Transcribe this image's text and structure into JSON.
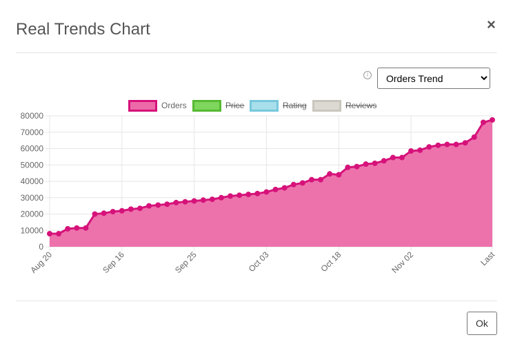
{
  "dialog": {
    "title": "Real Trends Chart",
    "close_symbol": "×",
    "ok_label": "Ok",
    "info_icon": "info-circle-icon"
  },
  "trend_select": {
    "selected": "Orders Trend",
    "options": [
      "Orders Trend"
    ]
  },
  "colors": {
    "orders": "#d6127a",
    "orders_fill": "#ec6aa8",
    "price": "#56b932",
    "price_fill": "#7fd65c",
    "rating": "#77c8db",
    "rating_fill": "#a8dfeb",
    "reviews": "#c9c6bd",
    "reviews_fill": "#dbd9d2"
  },
  "legend": [
    {
      "label": "Orders",
      "hidden": false
    },
    {
      "label": "Price",
      "hidden": true
    },
    {
      "label": "Rating",
      "hidden": true
    },
    {
      "label": "Reviews",
      "hidden": true
    }
  ],
  "chart_data": {
    "type": "area",
    "ylim": [
      0,
      80000
    ],
    "yticks": [
      0,
      10000,
      20000,
      30000,
      40000,
      50000,
      60000,
      70000,
      80000
    ],
    "xtick_labels": [
      {
        "label": "Aug 20",
        "index": 0
      },
      {
        "label": "Sep 16",
        "index": 8
      },
      {
        "label": "Sep 25",
        "index": 16
      },
      {
        "label": "Oct 03",
        "index": 24
      },
      {
        "label": "Oct 18",
        "index": 32
      },
      {
        "label": "Nov 02",
        "index": 40
      },
      {
        "label": "Last",
        "index": 49
      }
    ],
    "grid": true,
    "legend_position": "top",
    "series": [
      {
        "name": "Orders",
        "values": [
          8000,
          8000,
          11000,
          11500,
          11500,
          20000,
          20500,
          21500,
          22000,
          23000,
          23500,
          25000,
          25500,
          26000,
          27000,
          27500,
          28000,
          28500,
          29000,
          30000,
          31000,
          31500,
          32000,
          32500,
          33500,
          35000,
          36000,
          38000,
          39000,
          41000,
          41000,
          44500,
          44000,
          48500,
          49000,
          50500,
          51000,
          52500,
          54500,
          54500,
          58500,
          59000,
          61000,
          62000,
          62500,
          62500,
          63500,
          67000,
          76000,
          77500
        ]
      }
    ]
  }
}
